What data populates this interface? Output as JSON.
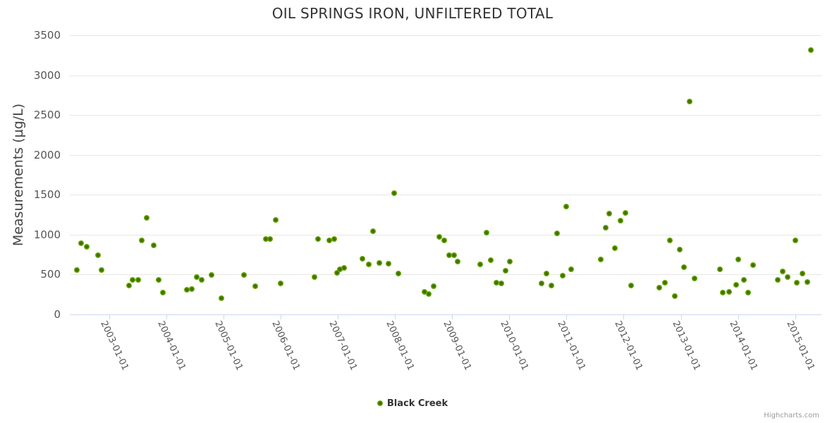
{
  "credits": "Highcharts.com",
  "colors": {
    "marker_outer": "#74b800",
    "marker_core": "#3e7000",
    "gridline": "#e6e6e6",
    "axis_line_and_ticks": "#ccd6eb",
    "title_text": "#333333",
    "axis_label_text": "#555555",
    "credits_text": "#999999",
    "background": "#ffffff"
  },
  "chart_data": {
    "type": "scatter",
    "title": "OIL SPRINGS IRON, UNFILTERED TOTAL",
    "xlabel": "",
    "ylabel": "Measurements (µg/L)",
    "ylim": [
      0,
      3500
    ],
    "ytick_interval": 500,
    "yaxis_tick_labels": [
      "0",
      "500",
      "1000",
      "1500",
      "2000",
      "2500",
      "3000",
      "3500"
    ],
    "xaxis_tick_labels": [
      "2003-01-01",
      "2004-01-01",
      "2005-01-01",
      "2006-01-01",
      "2007-01-01",
      "2008-01-01",
      "2009-01-01",
      "2010-01-01",
      "2011-01-01",
      "2012-01-01",
      "2013-01-01",
      "2014-01-01",
      "2015-01-01"
    ],
    "x_units": "decimal_year",
    "xlim": [
      2002.3,
      2015.45
    ],
    "grid": true,
    "legend_position": "bottom-center",
    "series": [
      {
        "name": "Black Creek",
        "color": "#74b800",
        "data": [
          [
            2002.43,
            560
          ],
          [
            2002.51,
            895
          ],
          [
            2002.6,
            850
          ],
          [
            2002.8,
            740
          ],
          [
            2002.87,
            560
          ],
          [
            2003.34,
            365
          ],
          [
            2003.41,
            430
          ],
          [
            2003.5,
            435
          ],
          [
            2003.57,
            930
          ],
          [
            2003.66,
            1210
          ],
          [
            2003.78,
            870
          ],
          [
            2003.86,
            435
          ],
          [
            2003.94,
            270
          ],
          [
            2004.36,
            305
          ],
          [
            2004.44,
            320
          ],
          [
            2004.53,
            470
          ],
          [
            2004.62,
            430
          ],
          [
            2004.79,
            495
          ],
          [
            2004.96,
            200
          ],
          [
            2005.36,
            495
          ],
          [
            2005.55,
            355
          ],
          [
            2005.74,
            945
          ],
          [
            2005.81,
            945
          ],
          [
            2005.91,
            1185
          ],
          [
            2006.0,
            385
          ],
          [
            2006.59,
            465
          ],
          [
            2006.65,
            945
          ],
          [
            2006.85,
            925
          ],
          [
            2006.94,
            950
          ],
          [
            2006.99,
            520
          ],
          [
            2007.04,
            565
          ],
          [
            2007.11,
            580
          ],
          [
            2007.43,
            700
          ],
          [
            2007.54,
            625
          ],
          [
            2007.62,
            1045
          ],
          [
            2007.73,
            645
          ],
          [
            2007.89,
            635
          ],
          [
            2007.99,
            1520
          ],
          [
            2008.06,
            515
          ],
          [
            2008.52,
            285
          ],
          [
            2008.59,
            255
          ],
          [
            2008.67,
            350
          ],
          [
            2008.77,
            970
          ],
          [
            2008.86,
            930
          ],
          [
            2008.95,
            745
          ],
          [
            2009.03,
            745
          ],
          [
            2009.1,
            665
          ],
          [
            2009.49,
            630
          ],
          [
            2009.6,
            1025
          ],
          [
            2009.68,
            680
          ],
          [
            2009.77,
            395
          ],
          [
            2009.86,
            385
          ],
          [
            2009.93,
            550
          ],
          [
            2010.01,
            665
          ],
          [
            2010.56,
            390
          ],
          [
            2010.65,
            515
          ],
          [
            2010.73,
            365
          ],
          [
            2010.83,
            1020
          ],
          [
            2010.93,
            485
          ],
          [
            2011.0,
            1350
          ],
          [
            2011.08,
            565
          ],
          [
            2011.6,
            685
          ],
          [
            2011.69,
            1090
          ],
          [
            2011.75,
            1260
          ],
          [
            2011.85,
            830
          ],
          [
            2011.95,
            1175
          ],
          [
            2012.03,
            1270
          ],
          [
            2012.13,
            365
          ],
          [
            2012.62,
            340
          ],
          [
            2012.72,
            400
          ],
          [
            2012.81,
            930
          ],
          [
            2012.9,
            230
          ],
          [
            2012.98,
            815
          ],
          [
            2013.06,
            590
          ],
          [
            2013.15,
            2665
          ],
          [
            2013.24,
            455
          ],
          [
            2013.68,
            565
          ],
          [
            2013.74,
            275
          ],
          [
            2013.84,
            280
          ],
          [
            2013.97,
            370
          ],
          [
            2014.0,
            690
          ],
          [
            2014.1,
            435
          ],
          [
            2014.18,
            275
          ],
          [
            2014.26,
            620
          ],
          [
            2014.7,
            435
          ],
          [
            2014.78,
            535
          ],
          [
            2014.87,
            470
          ],
          [
            2015.0,
            930
          ],
          [
            2015.03,
            395
          ],
          [
            2015.13,
            515
          ],
          [
            2015.21,
            405
          ],
          [
            2015.28,
            3310
          ]
        ]
      }
    ]
  }
}
